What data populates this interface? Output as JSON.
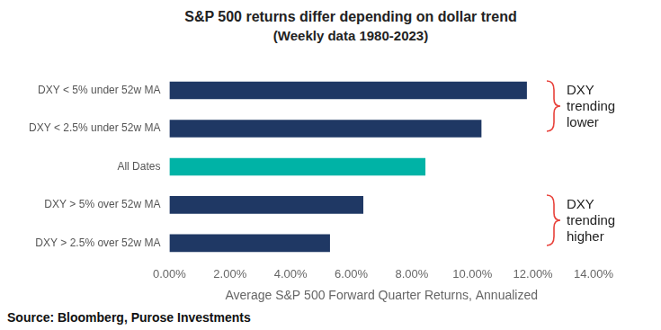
{
  "chart_data": {
    "type": "bar",
    "orientation": "horizontal",
    "title": "S&P 500 returns differ depending on dollar trend",
    "subtitle": "(Weekly data 1980-2023)",
    "categories": [
      "DXY < 5% under 52w MA",
      "DXY < 2.5% under 52w MA",
      "All Dates",
      "DXY > 5% over 52w MA",
      "DXY > 2.5% over 52w MA"
    ],
    "values": [
      11.8,
      10.3,
      8.45,
      6.4,
      5.3
    ],
    "colors": [
      "#1f3864",
      "#1f3864",
      "#00b3a6",
      "#1f3864",
      "#1f3864"
    ],
    "xlim": [
      0,
      14
    ],
    "xticks": [
      {
        "value": 0,
        "label": "0.00%"
      },
      {
        "value": 2,
        "label": "2.00%"
      },
      {
        "value": 4,
        "label": "4.00%"
      },
      {
        "value": 6,
        "label": "6.00%"
      },
      {
        "value": 8,
        "label": "8.00%"
      },
      {
        "value": 10,
        "label": "10.00%"
      },
      {
        "value": 12,
        "label": "12.00%"
      },
      {
        "value": 14,
        "label": "14.00%"
      }
    ],
    "x_label": "Average S&P 500 Forward Quarter Returns, Annualized",
    "annotations": [
      "DXY trending lower",
      "DXY trending higher"
    ],
    "source": "Source: Bloomberg, Purose Investments",
    "grid": false,
    "data_labels": false
  }
}
